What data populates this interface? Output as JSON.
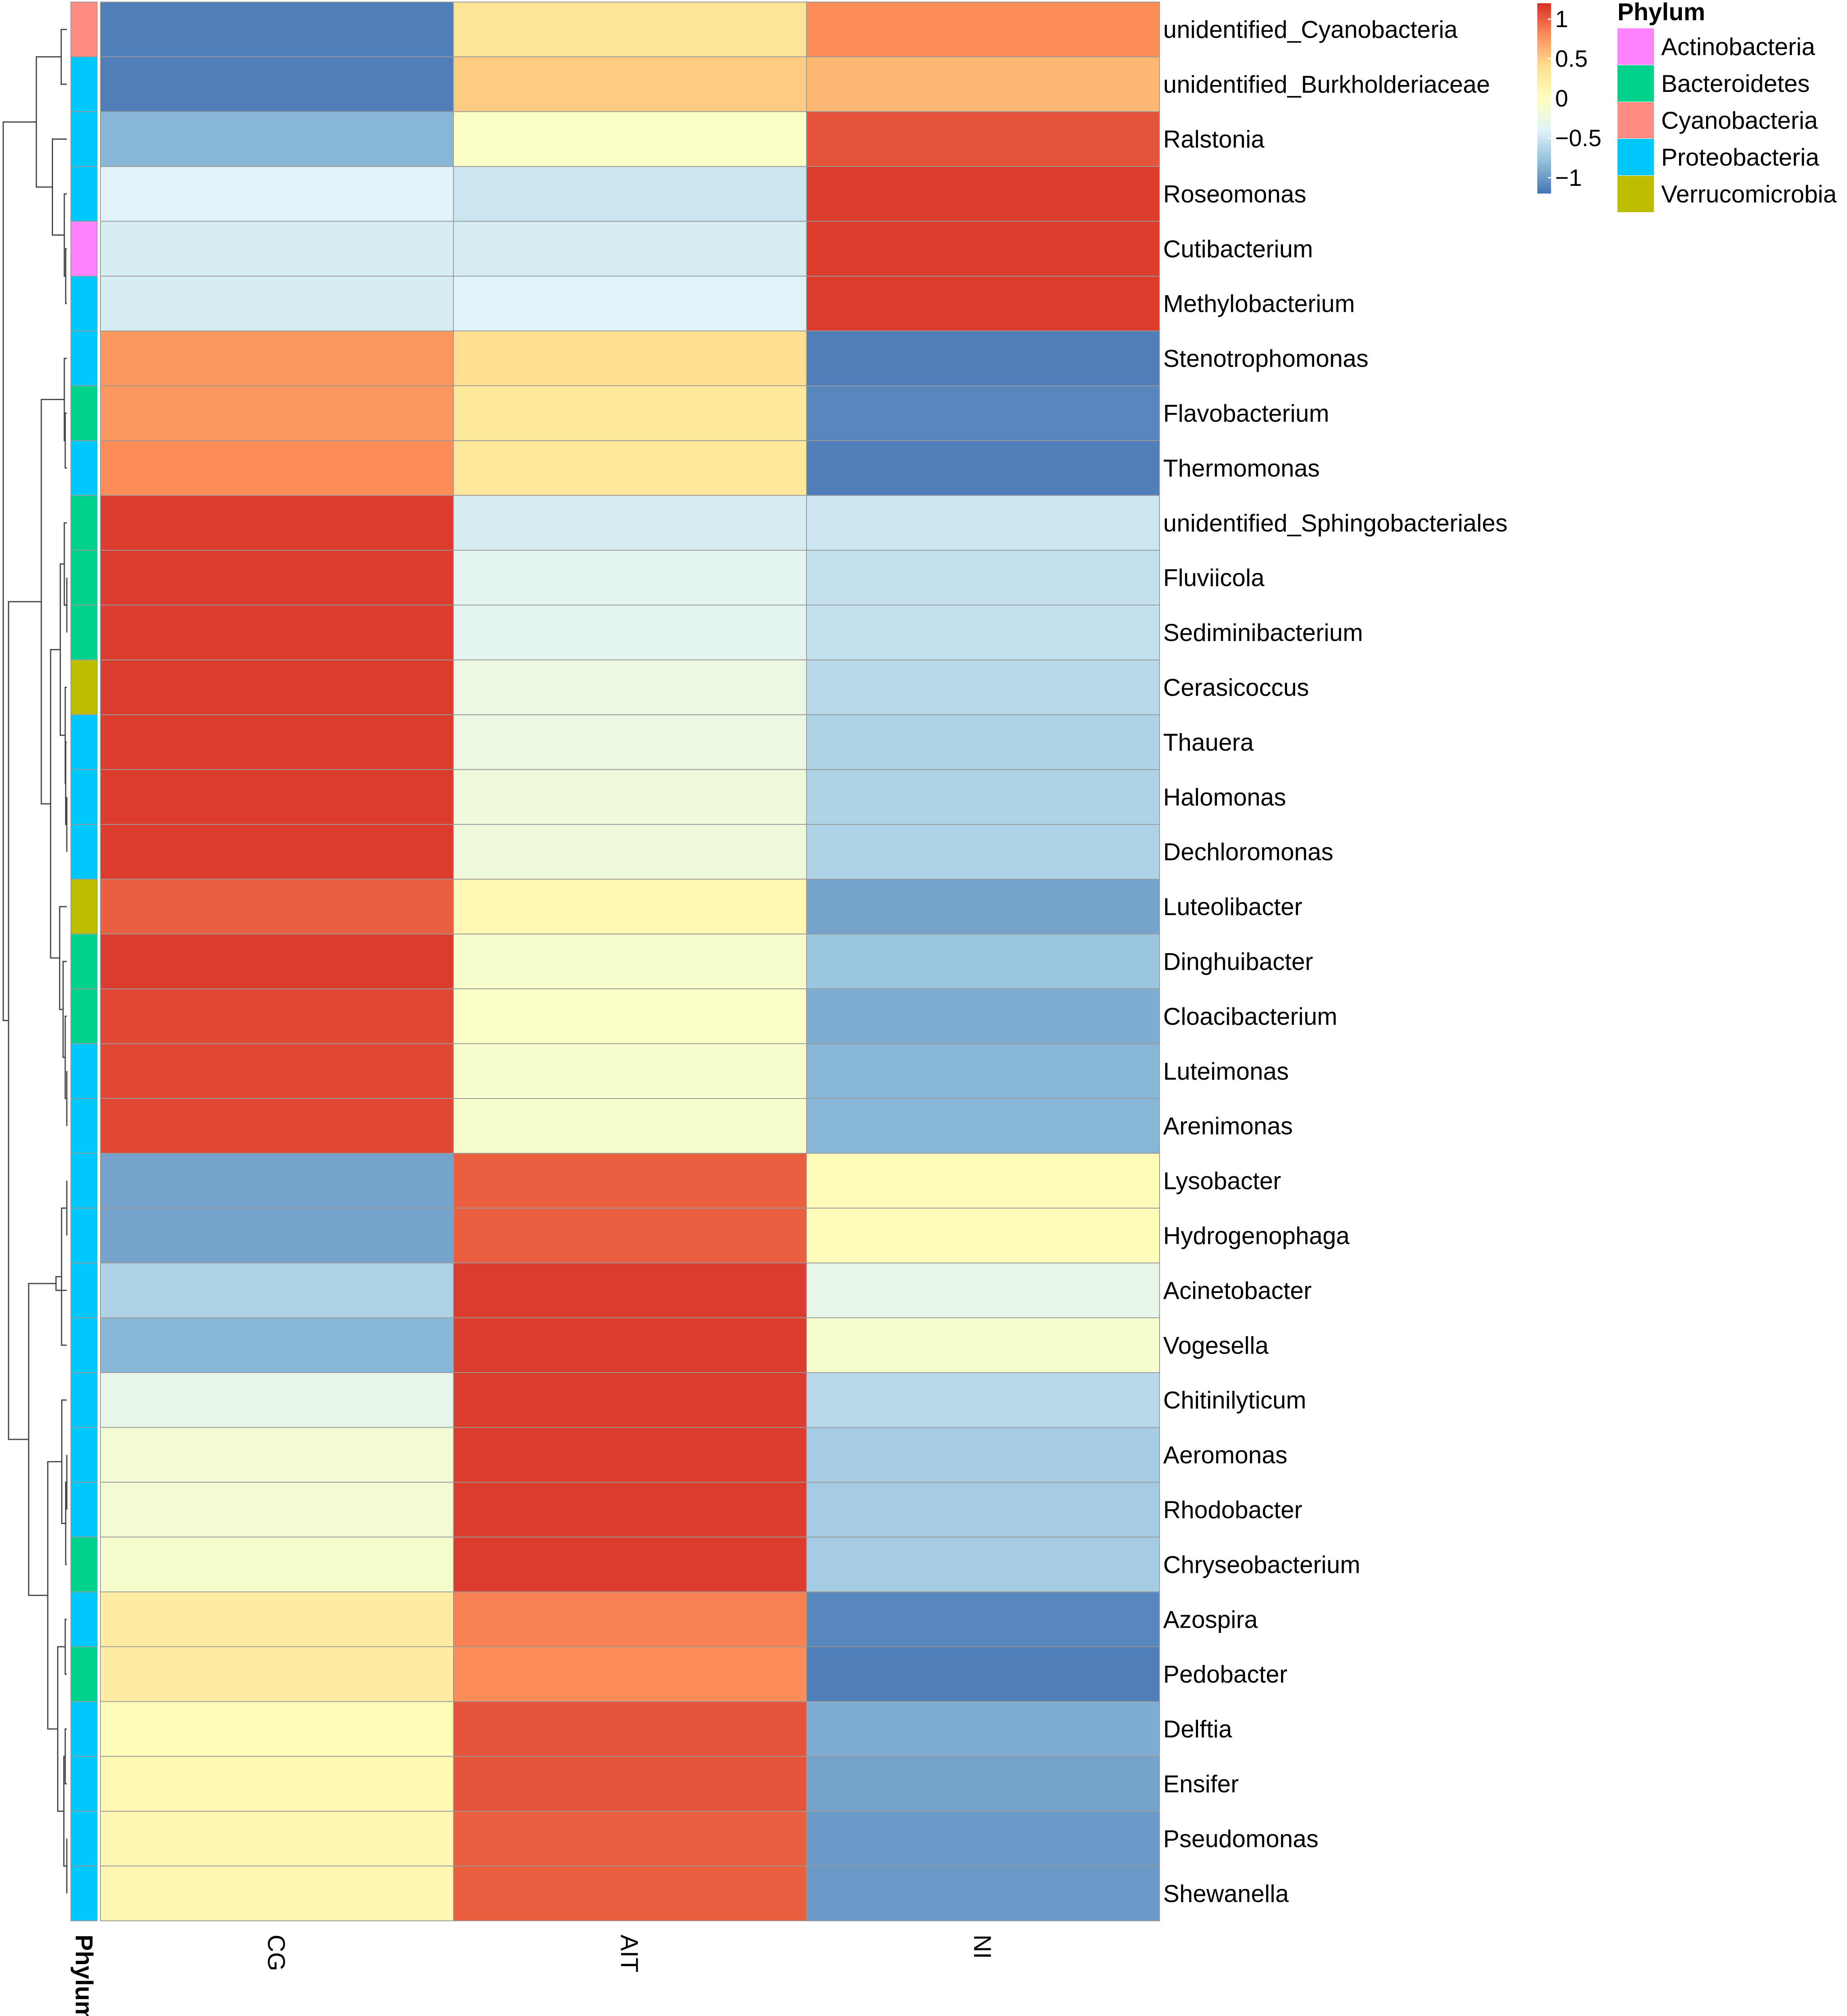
{
  "chart_data": {
    "type": "heatmap",
    "title": "",
    "columns": [
      "CG",
      "AIT",
      "NI"
    ],
    "rows": [
      {
        "name": "unidentified_Cyanobacteria",
        "phylum": "Cyanobacteria",
        "values": [
          -1.15,
          0.35,
          0.8
        ]
      },
      {
        "name": "unidentified_Burkholderiaceae",
        "phylum": "Proteobacteria",
        "values": [
          -1.15,
          0.5,
          0.6
        ]
      },
      {
        "name": "Ralstonia",
        "phylum": "Proteobacteria",
        "values": [
          -0.85,
          -0.05,
          1.05
        ]
      },
      {
        "name": "Roseomonas",
        "phylum": "Proteobacteria",
        "values": [
          -0.4,
          -0.5,
          1.15
        ]
      },
      {
        "name": "Cutibacterium",
        "phylum": "Actinobacteria",
        "values": [
          -0.45,
          -0.45,
          1.15
        ]
      },
      {
        "name": "Methylobacterium",
        "phylum": "Proteobacteria",
        "values": [
          -0.45,
          -0.4,
          1.15
        ]
      },
      {
        "name": "Stenotrophomonas",
        "phylum": "Proteobacteria",
        "values": [
          0.75,
          0.4,
          -1.15
        ]
      },
      {
        "name": "Flavobacterium",
        "phylum": "Bacteroidetes",
        "values": [
          0.75,
          0.3,
          -1.1
        ]
      },
      {
        "name": "Thermomonas",
        "phylum": "Proteobacteria",
        "values": [
          0.8,
          0.3,
          -1.15
        ]
      },
      {
        "name": "unidentified_Sphingobacteriales",
        "phylum": "Bacteroidetes",
        "values": [
          1.15,
          -0.45,
          -0.5
        ]
      },
      {
        "name": "Fluviicola",
        "phylum": "Bacteroidetes",
        "values": [
          1.15,
          -0.35,
          -0.55
        ]
      },
      {
        "name": "Sediminibacterium",
        "phylum": "Bacteroidetes",
        "values": [
          1.15,
          -0.35,
          -0.55
        ]
      },
      {
        "name": "Cerasicoccus",
        "phylum": "Verrucomicrobia",
        "values": [
          1.15,
          -0.25,
          -0.6
        ]
      },
      {
        "name": "Thauera",
        "phylum": "Proteobacteria",
        "values": [
          1.15,
          -0.25,
          -0.65
        ]
      },
      {
        "name": "Halomonas",
        "phylum": "Proteobacteria",
        "values": [
          1.15,
          -0.2,
          -0.65
        ]
      },
      {
        "name": "Dechloromonas",
        "phylum": "Proteobacteria",
        "values": [
          1.15,
          -0.2,
          -0.65
        ]
      },
      {
        "name": "Luteolibacter",
        "phylum": "Verrucomicrobia",
        "values": [
          1.0,
          0.1,
          -0.95
        ]
      },
      {
        "name": "Dinghuibacter",
        "phylum": "Bacteroidetes",
        "values": [
          1.15,
          -0.1,
          -0.75
        ]
      },
      {
        "name": "Cloacibacterium",
        "phylum": "Bacteroidetes",
        "values": [
          1.1,
          -0.05,
          -0.9
        ]
      },
      {
        "name": "Luteimonas",
        "phylum": "Proteobacteria",
        "values": [
          1.1,
          -0.1,
          -0.85
        ]
      },
      {
        "name": "Arenimonas",
        "phylum": "Proteobacteria",
        "values": [
          1.1,
          -0.1,
          -0.85
        ]
      },
      {
        "name": "Lysobacter",
        "phylum": "Proteobacteria",
        "values": [
          -0.95,
          1.0,
          0.05
        ]
      },
      {
        "name": "Hydrogenophaga",
        "phylum": "Proteobacteria",
        "values": [
          -0.95,
          1.0,
          0.05
        ]
      },
      {
        "name": "Acinetobacter",
        "phylum": "Proteobacteria",
        "values": [
          -0.65,
          1.15,
          -0.3
        ]
      },
      {
        "name": "Vogesella",
        "phylum": "Proteobacteria",
        "values": [
          -0.85,
          1.15,
          -0.1
        ]
      },
      {
        "name": "Chitinilyticum",
        "phylum": "Proteobacteria",
        "values": [
          -0.3,
          1.15,
          -0.6
        ]
      },
      {
        "name": "Aeromonas",
        "phylum": "Proteobacteria",
        "values": [
          -0.15,
          1.15,
          -0.7
        ]
      },
      {
        "name": "Rhodobacter",
        "phylum": "Proteobacteria",
        "values": [
          -0.15,
          1.15,
          -0.7
        ]
      },
      {
        "name": "Chryseobacterium",
        "phylum": "Bacteroidetes",
        "values": [
          -0.1,
          1.15,
          -0.7
        ]
      },
      {
        "name": "Azospira",
        "phylum": "Proteobacteria",
        "values": [
          0.25,
          0.85,
          -1.1
        ]
      },
      {
        "name": "Pedobacter",
        "phylum": "Bacteroidetes",
        "values": [
          0.25,
          0.8,
          -1.15
        ]
      },
      {
        "name": "Delftia",
        "phylum": "Proteobacteria",
        "values": [
          0.05,
          1.05,
          -0.9
        ]
      },
      {
        "name": "Ensifer",
        "phylum": "Proteobacteria",
        "values": [
          0.1,
          1.05,
          -0.95
        ]
      },
      {
        "name": "Pseudomonas",
        "phylum": "Proteobacteria",
        "values": [
          0.12,
          1.0,
          -1.0
        ]
      },
      {
        "name": "Shewanella",
        "phylum": "Proteobacteria",
        "values": [
          0.12,
          1.0,
          -1.0
        ]
      }
    ],
    "color_scale": {
      "ticks": [
        1,
        0.5,
        0,
        -0.5,
        -1
      ],
      "tick_labels": [
        "1",
        "0.5",
        "0",
        "−0.5",
        "−1"
      ],
      "min": -1.2,
      "max": 1.2,
      "colors": [
        "#4575b4",
        "#91bfdb",
        "#e0f3f8",
        "#ffffbf",
        "#fee090",
        "#fc8d59",
        "#d73027"
      ]
    },
    "annotation": {
      "title": "Phylum",
      "axis_label": "Phylum",
      "categories": [
        {
          "name": "Actinobacteria",
          "color": "#ff82ff"
        },
        {
          "name": "Bacteroidetes",
          "color": "#00d28c"
        },
        {
          "name": "Cyanobacteria",
          "color": "#ff8c82"
        },
        {
          "name": "Proteobacteria",
          "color": "#00c8ff"
        },
        {
          "name": "Verrucomicrobia",
          "color": "#bebe00"
        }
      ]
    },
    "dendrogram": "rows"
  }
}
